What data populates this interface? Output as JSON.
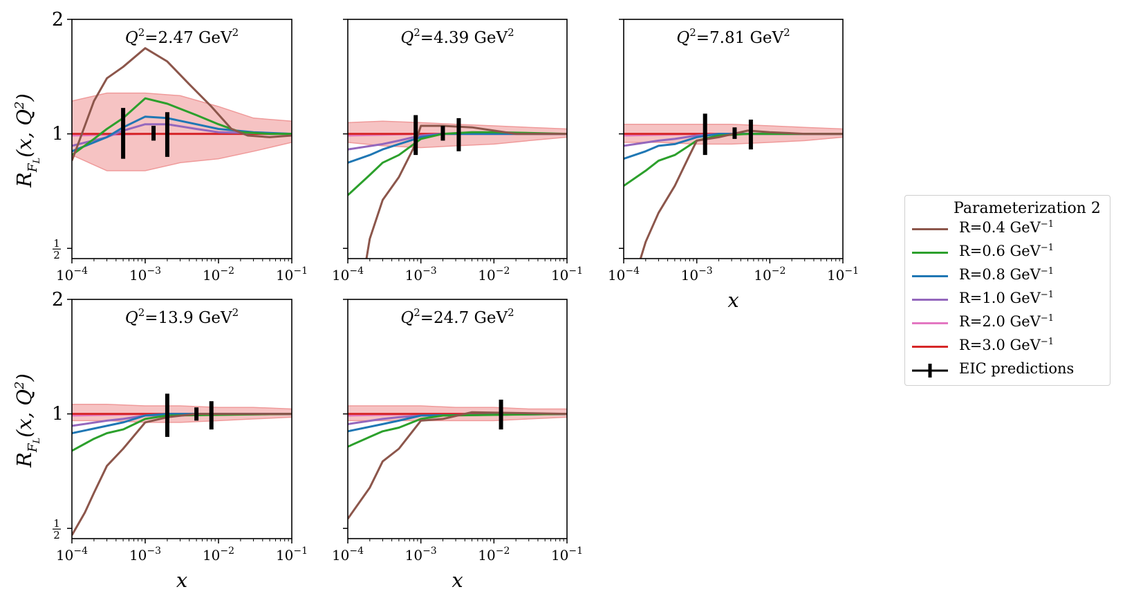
{
  "colors": {
    "band_fill": "#f4b8b8",
    "band_edge": "#ef9a9a",
    "series": {
      "R=0.4": "#8c564b",
      "R=0.6": "#2ca02c",
      "R=0.8": "#1f77b4",
      "R=1.0": "#9467bd",
      "R=2.0": "#e377c2",
      "R=3.0": "#d62728"
    },
    "eic": "#000000"
  },
  "legend": {
    "title": "Parameterization 2",
    "items": [
      {
        "key": "R=0.4",
        "label": "R=0.4 GeV",
        "sup": "−1"
      },
      {
        "key": "R=0.6",
        "label": "R=0.6 GeV",
        "sup": "−1"
      },
      {
        "key": "R=0.8",
        "label": "R=0.8 GeV",
        "sup": "−1"
      },
      {
        "key": "R=1.0",
        "label": "R=1.0 GeV",
        "sup": "−1"
      },
      {
        "key": "R=2.0",
        "label": "R=2.0 GeV",
        "sup": "−1"
      },
      {
        "key": "R=3.0",
        "label": "R=3.0 GeV",
        "sup": "−1"
      },
      {
        "key": "EIC",
        "label": "EIC predictions",
        "sup": ""
      }
    ]
  },
  "chart_data": [
    {
      "type": "line",
      "title": "Q²=2.47 GeV²",
      "xlabel": "",
      "ylabel": "R_{F_L}(x, Q²)",
      "xscale": "log",
      "yscale": "log2",
      "xlim": [
        0.0001,
        0.1
      ],
      "ylim": [
        0.47,
        2.0
      ],
      "xticks": [
        "10⁻⁴",
        "10⁻³",
        "10⁻²",
        "10⁻¹"
      ],
      "yticks": [
        "2",
        "1",
        "½"
      ],
      "band": {
        "x": [
          0.0001,
          0.0003,
          0.001,
          0.003,
          0.01,
          0.03,
          0.1
        ],
        "lower": [
          0.88,
          0.8,
          0.8,
          0.84,
          0.86,
          0.9,
          0.95
        ],
        "upper": [
          1.22,
          1.28,
          1.28,
          1.26,
          1.18,
          1.1,
          1.08
        ]
      },
      "series": [
        {
          "name": "R=0.4",
          "x": [
            0.0001,
            0.00015,
            0.0002,
            0.0003,
            0.0005,
            0.001,
            0.002,
            0.004,
            0.008,
            0.015,
            0.025,
            0.05,
            0.1
          ],
          "y": [
            0.85,
            1.05,
            1.22,
            1.4,
            1.5,
            1.68,
            1.55,
            1.35,
            1.18,
            1.03,
            0.99,
            0.98,
            0.99
          ]
        },
        {
          "name": "R=0.6",
          "x": [
            0.0001,
            0.0002,
            0.0003,
            0.0005,
            0.001,
            0.002,
            0.005,
            0.01,
            0.02,
            0.05,
            0.1
          ],
          "y": [
            0.88,
            0.97,
            1.03,
            1.1,
            1.24,
            1.2,
            1.12,
            1.06,
            1.01,
            1.0,
            1.0
          ]
        },
        {
          "name": "R=0.8",
          "x": [
            0.0001,
            0.0003,
            0.0005,
            0.001,
            0.002,
            0.005,
            0.01,
            0.03,
            0.1
          ],
          "y": [
            0.9,
            0.98,
            1.04,
            1.11,
            1.1,
            1.06,
            1.03,
            1.01,
            1.0
          ]
        },
        {
          "name": "R=1.0",
          "x": [
            0.0001,
            0.0003,
            0.0005,
            0.001,
            0.002,
            0.005,
            0.01,
            0.1
          ],
          "y": [
            0.93,
            0.98,
            1.02,
            1.06,
            1.06,
            1.03,
            1.01,
            1.0
          ]
        },
        {
          "name": "R=2.0",
          "x": [
            0.0001,
            0.001,
            0.01,
            0.1
          ],
          "y": [
            0.99,
            1.0,
            1.0,
            1.0
          ]
        },
        {
          "name": "R=3.0",
          "x": [
            0.0001,
            0.001,
            0.01,
            0.1
          ],
          "y": [
            1.0,
            1.0,
            1.0,
            1.0
          ]
        }
      ],
      "eic": [
        {
          "x": 0.0005,
          "y": 1.0,
          "lo": 0.86,
          "hi": 1.17
        },
        {
          "x": 0.0013,
          "y": 1.0,
          "lo": 0.96,
          "hi": 1.05
        },
        {
          "x": 0.002,
          "y": 1.0,
          "lo": 0.87,
          "hi": 1.14
        }
      ]
    },
    {
      "type": "line",
      "title": "Q²=4.39 GeV²",
      "xlabel": "",
      "ylabel": "",
      "xscale": "log",
      "yscale": "log2",
      "xlim": [
        0.0001,
        0.1
      ],
      "ylim": [
        0.47,
        2.0
      ],
      "xticks": [
        "10⁻⁴",
        "10⁻³",
        "10⁻²",
        "10⁻¹"
      ],
      "yticks": [],
      "band": {
        "x": [
          0.0001,
          0.0003,
          0.001,
          0.003,
          0.01,
          0.03,
          0.1
        ],
        "lower": [
          0.95,
          0.93,
          0.92,
          0.93,
          0.94,
          0.96,
          0.98
        ],
        "upper": [
          1.07,
          1.08,
          1.07,
          1.06,
          1.05,
          1.04,
          1.03
        ]
      },
      "series": [
        {
          "name": "R=0.4",
          "x": [
            0.00018,
            0.0002,
            0.0003,
            0.0005,
            0.0008,
            0.001,
            0.002,
            0.005,
            0.01,
            0.02,
            0.05,
            0.1
          ],
          "y": [
            0.47,
            0.53,
            0.67,
            0.77,
            0.92,
            1.05,
            1.05,
            1.04,
            1.02,
            1.0,
            1.0,
            1.0
          ]
        },
        {
          "name": "R=0.6",
          "x": [
            0.0001,
            0.0002,
            0.0003,
            0.0005,
            0.001,
            0.002,
            0.005,
            0.01,
            0.1
          ],
          "y": [
            0.69,
            0.78,
            0.84,
            0.88,
            0.97,
            1.0,
            1.01,
            1.01,
            1.0
          ]
        },
        {
          "name": "R=0.8",
          "x": [
            0.0001,
            0.0002,
            0.0003,
            0.0005,
            0.001,
            0.002,
            0.01,
            0.1
          ],
          "y": [
            0.84,
            0.88,
            0.91,
            0.94,
            0.98,
            1.0,
            1.0,
            1.0
          ]
        },
        {
          "name": "R=1.0",
          "x": [
            0.0001,
            0.0003,
            0.0005,
            0.001,
            0.002,
            0.01,
            0.1
          ],
          "y": [
            0.91,
            0.94,
            0.96,
            0.99,
            1.0,
            1.0,
            1.0
          ]
        },
        {
          "name": "R=2.0",
          "x": [
            0.0001,
            0.001,
            0.01,
            0.1
          ],
          "y": [
            0.99,
            1.0,
            1.0,
            1.0
          ]
        },
        {
          "name": "R=3.0",
          "x": [
            0.0001,
            0.001,
            0.01,
            0.1
          ],
          "y": [
            1.0,
            1.0,
            1.0,
            1.0
          ]
        }
      ],
      "eic": [
        {
          "x": 0.00085,
          "y": 1.0,
          "lo": 0.88,
          "hi": 1.12
        },
        {
          "x": 0.002,
          "y": 1.0,
          "lo": 0.96,
          "hi": 1.05
        },
        {
          "x": 0.0033,
          "y": 1.0,
          "lo": 0.9,
          "hi": 1.1
        }
      ]
    },
    {
      "type": "line",
      "title": "Q²=7.81 GeV²",
      "xlabel": "x",
      "ylabel": "",
      "xscale": "log",
      "yscale": "log2",
      "xlim": [
        0.0001,
        0.1
      ],
      "ylim": [
        0.47,
        2.0
      ],
      "xticks": [
        "10⁻⁴",
        "10⁻³",
        "10⁻²",
        "10⁻¹"
      ],
      "yticks": [],
      "band": {
        "x": [
          0.0001,
          0.0003,
          0.001,
          0.003,
          0.01,
          0.03,
          0.1
        ],
        "lower": [
          0.95,
          0.95,
          0.94,
          0.94,
          0.95,
          0.96,
          0.98
        ],
        "upper": [
          1.06,
          1.06,
          1.06,
          1.06,
          1.05,
          1.04,
          1.03
        ]
      },
      "series": [
        {
          "name": "R=0.4",
          "x": [
            0.00017,
            0.0002,
            0.0003,
            0.0005,
            0.0008,
            0.001,
            0.002,
            0.005,
            0.01,
            0.03,
            0.1
          ],
          "y": [
            0.47,
            0.52,
            0.62,
            0.73,
            0.88,
            0.96,
            0.98,
            1.02,
            1.01,
            1.0,
            1.0
          ]
        },
        {
          "name": "R=0.6",
          "x": [
            0.0001,
            0.0002,
            0.0003,
            0.0005,
            0.001,
            0.002,
            0.005,
            0.1
          ],
          "y": [
            0.73,
            0.8,
            0.85,
            0.88,
            0.96,
            0.99,
            1.0,
            1.0
          ]
        },
        {
          "name": "R=0.8",
          "x": [
            0.0001,
            0.0002,
            0.0003,
            0.0005,
            0.001,
            0.002,
            0.1
          ],
          "y": [
            0.86,
            0.9,
            0.93,
            0.94,
            0.98,
            1.0,
            1.0
          ]
        },
        {
          "name": "R=1.0",
          "x": [
            0.0001,
            0.0003,
            0.0005,
            0.001,
            0.002,
            0.1
          ],
          "y": [
            0.93,
            0.96,
            0.97,
            0.99,
            1.0,
            1.0
          ]
        },
        {
          "name": "R=2.0",
          "x": [
            0.0001,
            0.001,
            0.01,
            0.1
          ],
          "y": [
            0.99,
            1.0,
            1.0,
            1.0
          ]
        },
        {
          "name": "R=3.0",
          "x": [
            0.0001,
            0.001,
            0.01,
            0.1
          ],
          "y": [
            1.0,
            1.0,
            1.0,
            1.0
          ]
        }
      ],
      "eic": [
        {
          "x": 0.0013,
          "y": 1.0,
          "lo": 0.88,
          "hi": 1.13
        },
        {
          "x": 0.0033,
          "y": 1.0,
          "lo": 0.97,
          "hi": 1.04
        },
        {
          "x": 0.0055,
          "y": 1.0,
          "lo": 0.91,
          "hi": 1.09
        }
      ]
    },
    {
      "type": "line",
      "title": "Q²=13.9 GeV²",
      "xlabel": "x",
      "ylabel": "R_{F_L}(x, Q²)",
      "xscale": "log",
      "yscale": "log2",
      "xlim": [
        0.0001,
        0.1
      ],
      "ylim": [
        0.47,
        2.0
      ],
      "xticks": [
        "10⁻⁴",
        "10⁻³",
        "10⁻²",
        "10⁻¹"
      ],
      "yticks": [
        "2",
        "1",
        "½"
      ],
      "band": {
        "x": [
          0.0001,
          0.0003,
          0.001,
          0.003,
          0.01,
          0.03,
          0.1
        ],
        "lower": [
          0.96,
          0.96,
          0.95,
          0.95,
          0.96,
          0.97,
          0.98
        ],
        "upper": [
          1.06,
          1.06,
          1.05,
          1.05,
          1.04,
          1.04,
          1.03
        ]
      },
      "series": [
        {
          "name": "R=0.4",
          "x": [
            0.0001,
            0.00015,
            0.0002,
            0.0003,
            0.0005,
            0.001,
            0.002,
            0.005,
            0.1
          ],
          "y": [
            0.48,
            0.55,
            0.62,
            0.73,
            0.81,
            0.95,
            0.98,
            1.0,
            1.0
          ]
        },
        {
          "name": "R=0.6",
          "x": [
            0.0001,
            0.0002,
            0.0003,
            0.0005,
            0.001,
            0.002,
            0.1
          ],
          "y": [
            0.8,
            0.86,
            0.89,
            0.91,
            0.97,
            0.99,
            1.0
          ]
        },
        {
          "name": "R=0.8",
          "x": [
            0.0001,
            0.0003,
            0.0005,
            0.001,
            0.002,
            0.1
          ],
          "y": [
            0.89,
            0.93,
            0.95,
            0.99,
            1.0,
            1.0
          ]
        },
        {
          "name": "R=1.0",
          "x": [
            0.0001,
            0.0003,
            0.0005,
            0.001,
            0.1
          ],
          "y": [
            0.93,
            0.96,
            0.97,
            0.99,
            1.0
          ]
        },
        {
          "name": "R=2.0",
          "x": [
            0.0001,
            0.001,
            0.01,
            0.1
          ],
          "y": [
            0.99,
            1.0,
            1.0,
            1.0
          ]
        },
        {
          "name": "R=3.0",
          "x": [
            0.0001,
            0.001,
            0.01,
            0.1
          ],
          "y": [
            1.0,
            1.0,
            1.0,
            1.0
          ]
        }
      ],
      "eic": [
        {
          "x": 0.002,
          "y": 1.0,
          "lo": 0.87,
          "hi": 1.13
        },
        {
          "x": 0.005,
          "y": 1.0,
          "lo": 0.96,
          "hi": 1.04
        },
        {
          "x": 0.008,
          "y": 1.0,
          "lo": 0.91,
          "hi": 1.08
        }
      ]
    },
    {
      "type": "line",
      "title": "Q²=24.7 GeV²",
      "xlabel": "x",
      "ylabel": "",
      "xscale": "log",
      "yscale": "log2",
      "xlim": [
        0.0001,
        0.1
      ],
      "ylim": [
        0.47,
        2.0
      ],
      "xticks": [
        "10⁻⁴",
        "10⁻³",
        "10⁻²",
        "10⁻¹"
      ],
      "yticks": [],
      "band": {
        "x": [
          0.0001,
          0.0003,
          0.001,
          0.003,
          0.01,
          0.03,
          0.1
        ],
        "lower": [
          0.96,
          0.96,
          0.96,
          0.96,
          0.96,
          0.97,
          0.98
        ],
        "upper": [
          1.05,
          1.05,
          1.05,
          1.04,
          1.04,
          1.03,
          1.03
        ]
      },
      "series": [
        {
          "name": "R=0.4",
          "x": [
            0.0001,
            0.0002,
            0.0003,
            0.0005,
            0.001,
            0.002,
            0.005,
            0.1
          ],
          "y": [
            0.53,
            0.64,
            0.75,
            0.81,
            0.96,
            0.97,
            1.01,
            1.0
          ]
        },
        {
          "name": "R=0.6",
          "x": [
            0.0001,
            0.0002,
            0.0003,
            0.0005,
            0.001,
            0.002,
            0.1
          ],
          "y": [
            0.82,
            0.87,
            0.9,
            0.92,
            0.97,
            0.99,
            1.0
          ]
        },
        {
          "name": "R=0.8",
          "x": [
            0.0001,
            0.0003,
            0.0005,
            0.001,
            0.1
          ],
          "y": [
            0.9,
            0.94,
            0.96,
            0.99,
            1.0
          ]
        },
        {
          "name": "R=1.0",
          "x": [
            0.0001,
            0.0003,
            0.0005,
            0.001,
            0.1
          ],
          "y": [
            0.94,
            0.97,
            0.98,
            0.99,
            1.0
          ]
        },
        {
          "name": "R=2.0",
          "x": [
            0.0001,
            0.001,
            0.01,
            0.1
          ],
          "y": [
            0.99,
            1.0,
            1.0,
            1.0
          ]
        },
        {
          "name": "R=3.0",
          "x": [
            0.0001,
            0.001,
            0.01,
            0.1
          ],
          "y": [
            1.0,
            1.0,
            1.0,
            1.0
          ]
        }
      ],
      "eic": [
        {
          "x": 0.0125,
          "y": 1.0,
          "lo": 0.91,
          "hi": 1.09
        }
      ]
    }
  ]
}
